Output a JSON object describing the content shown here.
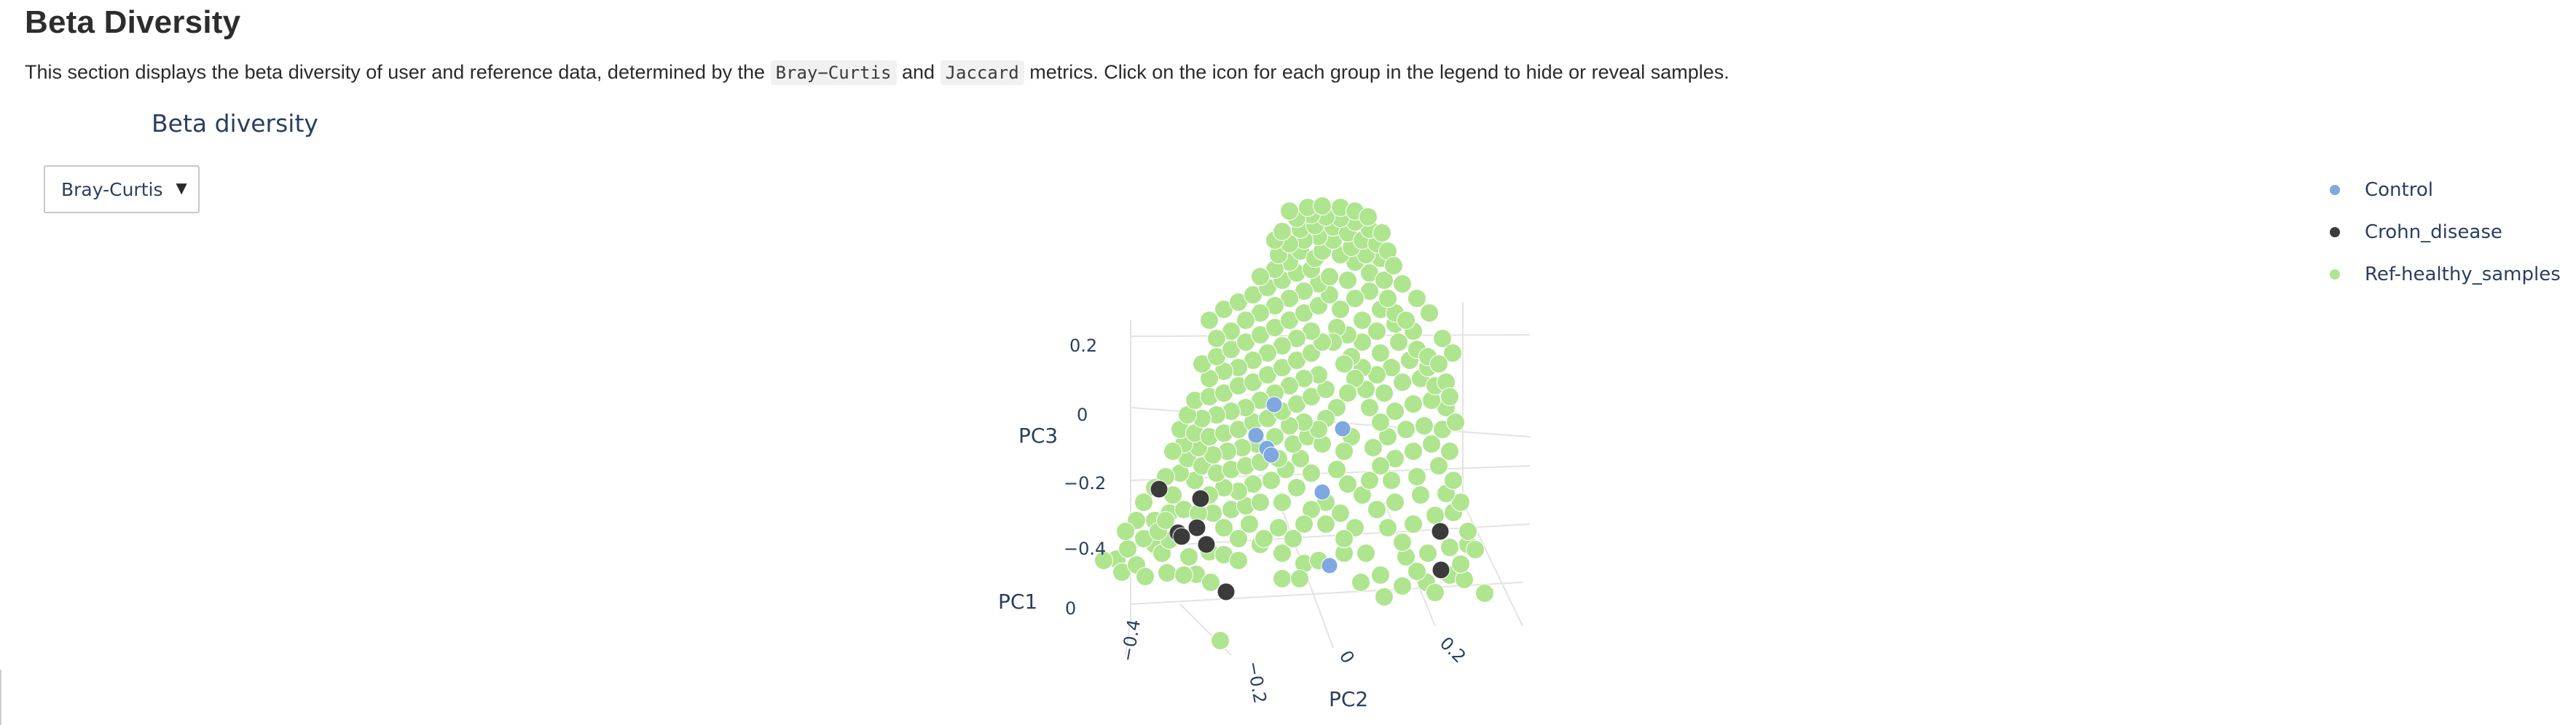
{
  "section": {
    "title": "Beta Diversity",
    "description": {
      "before": "This section displays the beta diversity of user and reference data, determined by the ",
      "metric1": "Bray−Curtis",
      "middle": " and ",
      "metric2": "Jaccard",
      "after": " metrics. Click on the icon for each group in the legend to hide or reveal samples."
    }
  },
  "plot": {
    "title": "Beta diversity",
    "dropdown": {
      "selected": "Bray-Curtis"
    }
  },
  "legend": {
    "items": [
      {
        "name": "Control",
        "color": "#7fa8e0"
      },
      {
        "name": "Crohn_disease",
        "color": "#3b3b3b"
      },
      {
        "name": "Ref-healthy_samples",
        "color": "#aee58e"
      }
    ]
  },
  "chart_data": {
    "type": "scatter3d",
    "title": "Beta diversity",
    "axes": {
      "x": {
        "title": "PC1",
        "tick_labels": [
          "0"
        ]
      },
      "y": {
        "title": "PC2",
        "tick_labels": [
          "−0.4",
          "−0.2",
          "0",
          "0.2"
        ]
      },
      "z": {
        "title": "PC3",
        "tick_labels": [
          "0.2",
          "0",
          "−0.2",
          "−0.4"
        ]
      }
    },
    "grid": true,
    "legend_position": "top-right",
    "series": [
      {
        "name": "Control",
        "color": "#7fa8e0",
        "points": [
          [
            1749,
            556
          ],
          [
            1724,
            598
          ],
          [
            1739,
            616
          ],
          [
            1843,
            589
          ],
          [
            1815,
            676
          ],
          [
            1825,
            777
          ],
          [
            1745,
            625
          ]
        ]
      },
      {
        "name": "Crohn_disease",
        "color": "#3b3b3b",
        "points": [
          [
            1591,
            672
          ],
          [
            1648,
            685
          ],
          [
            1617,
            732
          ],
          [
            1643,
            725
          ],
          [
            1683,
            813
          ],
          [
            1977,
            730
          ],
          [
            1978,
            783
          ],
          [
            1622,
            737
          ],
          [
            1656,
            748
          ]
        ]
      },
      {
        "name": "Ref-healthy_samples",
        "color": "#aee58e",
        "points": [
          [
            1533,
            768
          ],
          [
            1540,
            786
          ],
          [
            1560,
            776
          ],
          [
            1572,
            792
          ],
          [
            1602,
            787
          ],
          [
            1642,
            789
          ],
          [
            1585,
            748
          ],
          [
            1595,
            760
          ],
          [
            1605,
            742
          ],
          [
            1570,
            740
          ],
          [
            1548,
            754
          ],
          [
            1632,
            765
          ],
          [
            1660,
            758
          ],
          [
            1680,
            762
          ],
          [
            1700,
            770
          ],
          [
            1730,
            748
          ],
          [
            1760,
            760
          ],
          [
            1790,
            774
          ],
          [
            1810,
            770
          ],
          [
            1845,
            760
          ],
          [
            1868,
            800
          ],
          [
            1900,
            820
          ],
          [
            1958,
            800
          ],
          [
            1990,
            790
          ],
          [
            2010,
            796
          ],
          [
            2038,
            815
          ],
          [
            1970,
            814
          ],
          [
            1945,
            785
          ],
          [
            1930,
            765
          ],
          [
            1960,
            760
          ],
          [
            1990,
            752
          ],
          [
            2015,
            748
          ],
          [
            1925,
            745
          ],
          [
            1905,
            725
          ],
          [
            1940,
            720
          ],
          [
            1970,
            708
          ],
          [
            1995,
            704
          ],
          [
            2005,
            690
          ],
          [
            1985,
            678
          ],
          [
            1950,
            680
          ],
          [
            1915,
            690
          ],
          [
            1890,
            700
          ],
          [
            1870,
            680
          ],
          [
            1880,
            660
          ],
          [
            1910,
            660
          ],
          [
            1945,
            655
          ],
          [
            1975,
            640
          ],
          [
            1995,
            660
          ],
          [
            1990,
            620
          ],
          [
            1965,
            610
          ],
          [
            1940,
            620
          ],
          [
            1915,
            630
          ],
          [
            1895,
            640
          ],
          [
            1885,
            615
          ],
          [
            1905,
            600
          ],
          [
            1930,
            590
          ],
          [
            1955,
            585
          ],
          [
            1980,
            590
          ],
          [
            1985,
            560
          ],
          [
            1965,
            550
          ],
          [
            1940,
            555
          ],
          [
            1915,
            565
          ],
          [
            1895,
            580
          ],
          [
            1880,
            560
          ],
          [
            1900,
            540
          ],
          [
            1925,
            525
          ],
          [
            1950,
            520
          ],
          [
            1970,
            530
          ],
          [
            1985,
            525
          ],
          [
            1960,
            505
          ],
          [
            1935,
            495
          ],
          [
            1910,
            505
          ],
          [
            1890,
            515
          ],
          [
            1875,
            535
          ],
          [
            1870,
            505
          ],
          [
            1895,
            485
          ],
          [
            1920,
            470
          ],
          [
            1945,
            480
          ],
          [
            1960,
            490
          ],
          [
            1940,
            455
          ],
          [
            1915,
            445
          ],
          [
            1890,
            455
          ],
          [
            1870,
            470
          ],
          [
            1855,
            490
          ],
          [
            1850,
            460
          ],
          [
            1870,
            440
          ],
          [
            1895,
            425
          ],
          [
            1915,
            430
          ],
          [
            1930,
            440
          ],
          [
            1905,
            410
          ],
          [
            1880,
            400
          ],
          [
            1860,
            410
          ],
          [
            1840,
            425
          ],
          [
            1835,
            450
          ],
          [
            1830,
            470
          ],
          [
            1845,
            500
          ],
          [
            1860,
            520
          ],
          [
            1850,
            540
          ],
          [
            1835,
            560
          ],
          [
            1820,
            575
          ],
          [
            1855,
            600
          ],
          [
            1845,
            620
          ],
          [
            1835,
            645
          ],
          [
            1850,
            665
          ],
          [
            1820,
            690
          ],
          [
            1840,
            705
          ],
          [
            1860,
            725
          ],
          [
            1845,
            740
          ],
          [
            1820,
            720
          ],
          [
            1800,
            700
          ],
          [
            1790,
            720
          ],
          [
            1775,
            740
          ],
          [
            1755,
            725
          ],
          [
            1735,
            740
          ],
          [
            1715,
            720
          ],
          [
            1700,
            740
          ],
          [
            1680,
            725
          ],
          [
            1665,
            705
          ],
          [
            1690,
            700
          ],
          [
            1710,
            695
          ],
          [
            1730,
            690
          ],
          [
            1760,
            690
          ],
          [
            1780,
            670
          ],
          [
            1800,
            650
          ],
          [
            1785,
            630
          ],
          [
            1765,
            645
          ],
          [
            1745,
            660
          ],
          [
            1720,
            665
          ],
          [
            1700,
            675
          ],
          [
            1680,
            670
          ],
          [
            1660,
            680
          ],
          [
            1640,
            660
          ],
          [
            1620,
            650
          ],
          [
            1600,
            655
          ],
          [
            1585,
            670
          ],
          [
            1570,
            690
          ],
          [
            1560,
            715
          ],
          [
            1585,
            715
          ],
          [
            1605,
            705
          ],
          [
            1625,
            700
          ],
          [
            1645,
            705
          ],
          [
            1610,
            680
          ],
          [
            1630,
            630
          ],
          [
            1650,
            640
          ],
          [
            1670,
            650
          ],
          [
            1690,
            645
          ],
          [
            1710,
            640
          ],
          [
            1730,
            635
          ],
          [
            1755,
            630
          ],
          [
            1775,
            610
          ],
          [
            1795,
            600
          ],
          [
            1815,
            610
          ],
          [
            1810,
            590
          ],
          [
            1790,
            580
          ],
          [
            1770,
            585
          ],
          [
            1750,
            600
          ],
          [
            1725,
            610
          ],
          [
            1705,
            615
          ],
          [
            1685,
            620
          ],
          [
            1665,
            625
          ],
          [
            1645,
            615
          ],
          [
            1625,
            610
          ],
          [
            1610,
            620
          ],
          [
            1620,
            590
          ],
          [
            1640,
            595
          ],
          [
            1660,
            600
          ],
          [
            1680,
            595
          ],
          [
            1700,
            590
          ],
          [
            1720,
            580
          ],
          [
            1740,
            575
          ],
          [
            1760,
            565
          ],
          [
            1780,
            555
          ],
          [
            1800,
            545
          ],
          [
            1820,
            535
          ],
          [
            1810,
            515
          ],
          [
            1790,
            520
          ],
          [
            1770,
            530
          ],
          [
            1750,
            540
          ],
          [
            1730,
            550
          ],
          [
            1710,
            560
          ],
          [
            1690,
            565
          ],
          [
            1670,
            570
          ],
          [
            1650,
            575
          ],
          [
            1630,
            570
          ],
          [
            1640,
            550
          ],
          [
            1660,
            545
          ],
          [
            1680,
            540
          ],
          [
            1700,
            530
          ],
          [
            1720,
            525
          ],
          [
            1740,
            515
          ],
          [
            1760,
            505
          ],
          [
            1780,
            495
          ],
          [
            1800,
            485
          ],
          [
            1815,
            470
          ],
          [
            1800,
            455
          ],
          [
            1780,
            465
          ],
          [
            1760,
            475
          ],
          [
            1740,
            485
          ],
          [
            1720,
            495
          ],
          [
            1700,
            505
          ],
          [
            1680,
            510
          ],
          [
            1660,
            520
          ],
          [
            1650,
            500
          ],
          [
            1670,
            490
          ],
          [
            1690,
            480
          ],
          [
            1710,
            470
          ],
          [
            1730,
            460
          ],
          [
            1750,
            450
          ],
          [
            1770,
            440
          ],
          [
            1790,
            430
          ],
          [
            1810,
            420
          ],
          [
            1825,
            405
          ],
          [
            1810,
            390
          ],
          [
            1790,
            400
          ],
          [
            1770,
            410
          ],
          [
            1750,
            420
          ],
          [
            1730,
            430
          ],
          [
            1710,
            440
          ],
          [
            1690,
            455
          ],
          [
            1670,
            465
          ],
          [
            1660,
            440
          ],
          [
            1680,
            425
          ],
          [
            1700,
            415
          ],
          [
            1720,
            405
          ],
          [
            1740,
            395
          ],
          [
            1760,
            385
          ],
          [
            1780,
            375
          ],
          [
            1800,
            370
          ],
          [
            1770,
            360
          ],
          [
            1750,
            370
          ],
          [
            1730,
            380
          ],
          [
            1755,
            350
          ],
          [
            1785,
            345
          ],
          [
            1805,
            355
          ],
          [
            1825,
            380
          ],
          [
            1850,
            385
          ],
          [
            1860,
            360
          ],
          [
            1840,
            350
          ],
          [
            1815,
            345
          ],
          [
            1880,
            375
          ],
          [
            1900,
            385
          ],
          [
            1895,
            355
          ],
          [
            1875,
            350
          ],
          [
            1855,
            340
          ],
          [
            1830,
            330
          ],
          [
            1810,
            325
          ],
          [
            1790,
            330
          ],
          [
            1770,
            335
          ],
          [
            1750,
            330
          ],
          [
            1760,
            318
          ],
          [
            1785,
            315
          ],
          [
            1805,
            310
          ],
          [
            1830,
            312
          ],
          [
            1850,
            320
          ],
          [
            1870,
            330
          ],
          [
            1890,
            335
          ],
          [
            1905,
            345
          ],
          [
            1880,
            315
          ],
          [
            1860,
            305
          ],
          [
            1840,
            300
          ],
          [
            1820,
            298
          ],
          [
            1800,
            295
          ],
          [
            1780,
            300
          ],
          [
            1770,
            290
          ],
          [
            1795,
            285
          ],
          [
            1815,
            283
          ],
          [
            1840,
            285
          ],
          [
            1860,
            290
          ],
          [
            1878,
            298
          ],
          [
            1897,
            320
          ],
          [
            1913,
            365
          ],
          [
            1925,
            390
          ],
          [
            1945,
            410
          ],
          [
            1962,
            430
          ],
          [
            1980,
            465
          ],
          [
            1994,
            485
          ],
          [
            1975,
            500
          ],
          [
            1990,
            545
          ],
          [
            1998,
            580
          ],
          [
            1675,
            880
          ],
          [
            1590,
            730
          ],
          [
            1600,
            715
          ],
          [
            1545,
            730
          ],
          [
            1515,
            770
          ],
          [
            1625,
            790
          ],
          [
            1662,
            800
          ],
          [
            1760,
            795
          ],
          [
            1784,
            795
          ],
          [
            1875,
            760
          ],
          [
            1895,
            790
          ],
          [
            1925,
            805
          ],
          [
            2005,
            775
          ],
          [
            2025,
            755
          ],
          [
            2015,
            730
          ]
        ]
      }
    ]
  }
}
